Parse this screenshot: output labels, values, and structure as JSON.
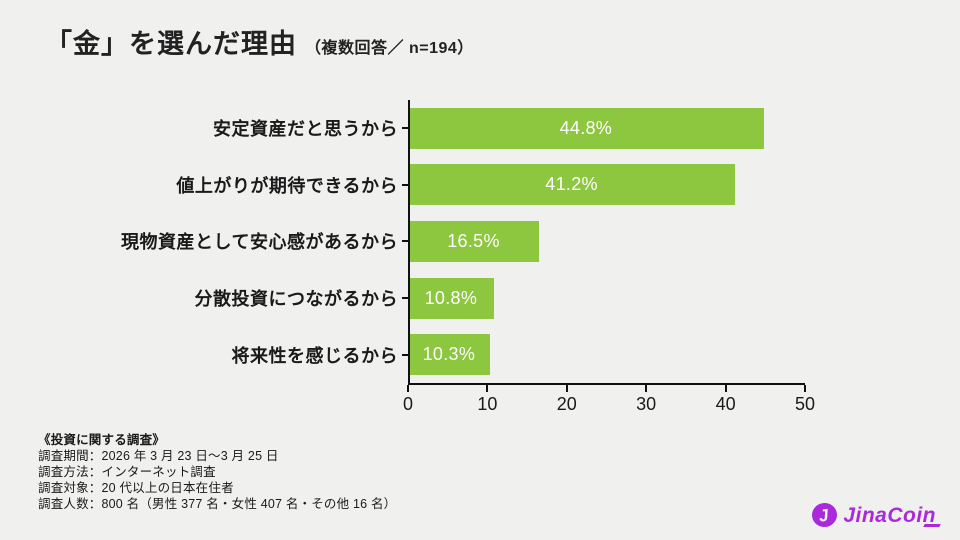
{
  "title": {
    "main": "「金」を選んだ理由",
    "sub": "（複数回答／ n=194）"
  },
  "chart_data": {
    "type": "bar",
    "orientation": "horizontal",
    "title": "「金」を選んだ理由（複数回答／ n=194）",
    "categories": [
      "安定資産だと思うから",
      "値上がりが期待できるから",
      "現物資産として安心感があるから",
      "分散投資につながるから",
      "将来性を感じるから"
    ],
    "values": [
      44.8,
      41.2,
      16.5,
      10.8,
      10.3
    ],
    "value_labels": [
      "44.8%",
      "41.2%",
      "16.5%",
      "10.8%",
      "10.3%"
    ],
    "xlabel": "",
    "ylabel": "",
    "xlim": [
      0,
      50
    ],
    "xticks": [
      0,
      10,
      20,
      30,
      40,
      50
    ],
    "grid": false,
    "legend": false,
    "bar_color": "#8dc63f",
    "value_label_color": "#ffffff",
    "axis_color": "#111111"
  },
  "survey": {
    "heading": "《投資に関する調査》",
    "lines": [
      "調査期間：2026 年 3 月 23 日～3 月 25 日",
      "調査方法：インターネット調査",
      "調査対象：20 代以上の日本在住者",
      "調査人数：800 名（男性 377 名・女性 407 名・その他 16 名）"
    ]
  },
  "logo": {
    "text": "JinaCoin",
    "icon_letter": "J",
    "brand_color": "#a929db"
  }
}
